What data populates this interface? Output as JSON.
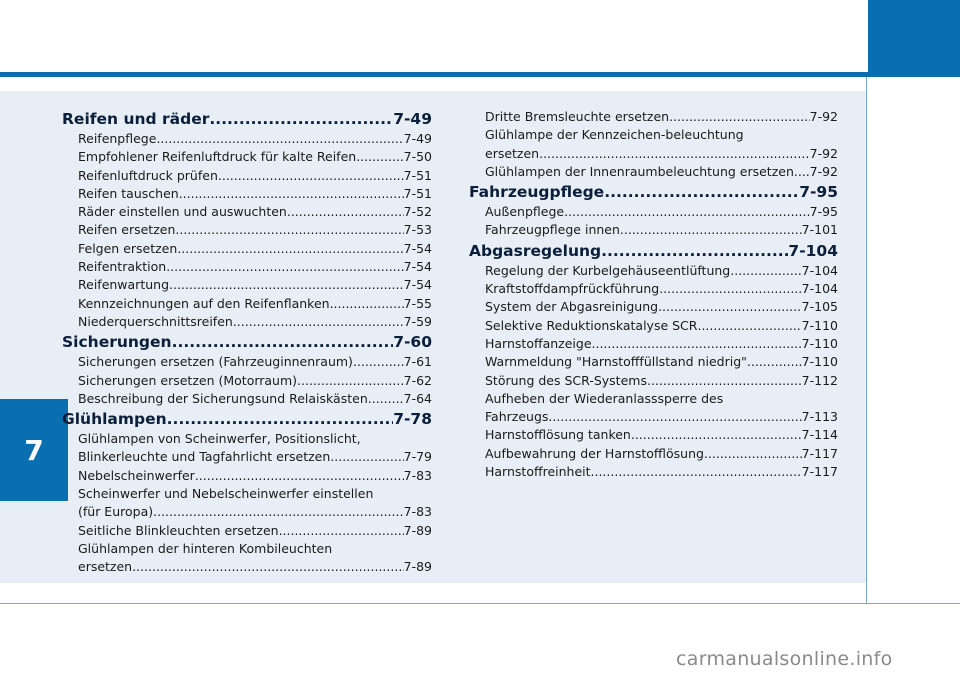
{
  "chapter": {
    "number": "7"
  },
  "left_column": [
    {
      "type": "section",
      "title": "Reifen und räder",
      "page": "7-49"
    },
    {
      "type": "item",
      "title": "Reifenpflege",
      "page": "7-49"
    },
    {
      "type": "item",
      "title": "Empfohlener Reifenluftdruck für kalte Reifen",
      "page": "7-50"
    },
    {
      "type": "item",
      "title": "Reifenluftdruck prüfen",
      "page": "7-51"
    },
    {
      "type": "item",
      "title": "Reifen tauschen",
      "page": "7-51"
    },
    {
      "type": "item",
      "title": "Räder einstellen und auswuchten",
      "page": "7-52"
    },
    {
      "type": "item",
      "title": "Reifen ersetzen",
      "page": "7-53"
    },
    {
      "type": "item",
      "title": "Felgen ersetzen",
      "page": "7-54"
    },
    {
      "type": "item",
      "title": "Reifentraktion",
      "page": "7-54"
    },
    {
      "type": "item",
      "title": "Reifenwartung",
      "page": "7-54"
    },
    {
      "type": "item",
      "title": "Kennzeichnungen auf den Reifenflanken",
      "page": "7-55"
    },
    {
      "type": "item",
      "title": "Niederquerschnittsreifen",
      "page": "7-59"
    },
    {
      "type": "section",
      "title": "Sicherungen",
      "page": "7-60"
    },
    {
      "type": "item",
      "title": "Sicherungen ersetzen (Fahrzeuginnenraum)",
      "page": "7-61"
    },
    {
      "type": "item",
      "title": "Sicherungen ersetzen (Motorraum)",
      "page": "7-62"
    },
    {
      "type": "item",
      "title": "Beschreibung der Sicherungsund Relaiskästen",
      "page": "7-64"
    },
    {
      "type": "section",
      "title": "Glühlampen",
      "page": "7-78"
    },
    {
      "type": "item",
      "title_lines": [
        "Glühlampen von Scheinwerfer, Positionslicht,"
      ],
      "title": "Blinkerleuchte und Tagfahrlicht ersetzen",
      "page": "7-79"
    },
    {
      "type": "item",
      "title": "Nebelscheinwerfer",
      "page": "7-83"
    },
    {
      "type": "item",
      "title_lines": [
        "Scheinwerfer und Nebelscheinwerfer einstellen"
      ],
      "title": "(für Europa)",
      "page": "7-83"
    },
    {
      "type": "item",
      "title": "Seitliche Blinkleuchten ersetzen",
      "page": "7-89"
    },
    {
      "type": "item",
      "title_lines": [
        "Glühlampen der hinteren Kombileuchten"
      ],
      "title": "ersetzen",
      "page": "7-89"
    }
  ],
  "right_column": [
    {
      "type": "item",
      "title": "Dritte Bremsleuchte ersetzen",
      "page": "7-92"
    },
    {
      "type": "item",
      "title_lines": [
        "Glühlampe der Kennzeichen-beleuchtung"
      ],
      "title": "ersetzen",
      "page": "7-92"
    },
    {
      "type": "item",
      "title": "Glühlampen der Innenraumbeleuchtung ersetzen",
      "page": "7-92"
    },
    {
      "type": "section",
      "title": "Fahrzeugpflege",
      "page": "7-95"
    },
    {
      "type": "item",
      "title": "Außenpflege",
      "page": "7-95"
    },
    {
      "type": "item",
      "title": "Fahrzeugpflege innen",
      "page": "7-101"
    },
    {
      "type": "section",
      "title": "Abgasregelung",
      "page": "7-104"
    },
    {
      "type": "item",
      "title": "Regelung der Kurbelgehäuseentlüftung",
      "page": "7-104"
    },
    {
      "type": "item",
      "title": "Kraftstoffdampfrückführung",
      "page": "7-104"
    },
    {
      "type": "item",
      "title": "System der Abgasreinigung",
      "page": "7-105"
    },
    {
      "type": "item",
      "title": "Selektive Reduktionskatalyse SCR",
      "page": "7-110"
    },
    {
      "type": "item",
      "title": "Harnstoffanzeige",
      "page": "7-110"
    },
    {
      "type": "item",
      "title": "Warnmeldung \"Harnstofffüllstand niedrig\"",
      "page": "7-110"
    },
    {
      "type": "item",
      "title": "Störung des SCR-Systems",
      "page": "7-112"
    },
    {
      "type": "item",
      "title_lines": [
        "Aufheben der Wiederanlasssperre des"
      ],
      "title": "Fahrzeugs",
      "page": "7-113"
    },
    {
      "type": "item",
      "title": "Harnstofflösung tanken",
      "page": "7-114"
    },
    {
      "type": "item",
      "title": "Aufbewahrung der Harnstofflösung",
      "page": "7-117"
    },
    {
      "type": "item",
      "title": "Harnstoffreinheit",
      "page": "7-117"
    }
  ],
  "watermark": "carmanualsonline.info"
}
